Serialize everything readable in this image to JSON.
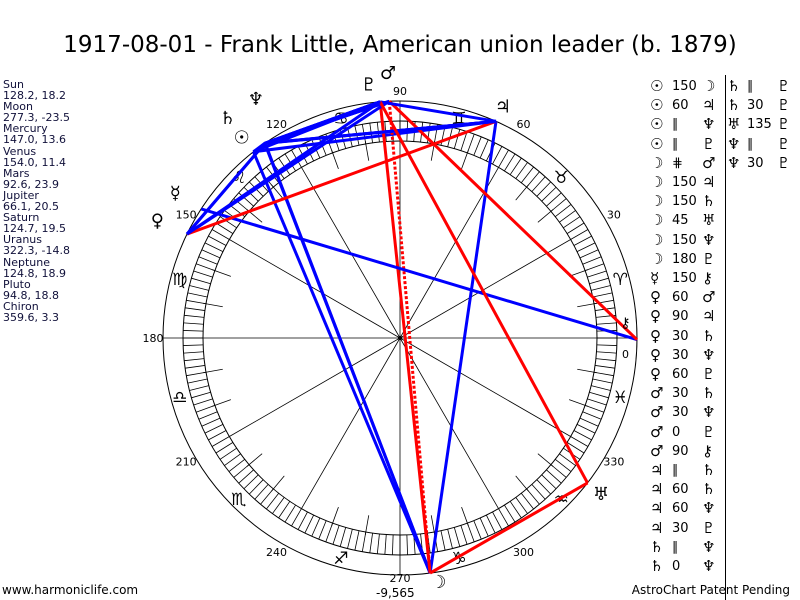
{
  "title": "1917-08-01 - Frank Little, American union leader (b. 1879)",
  "planets": [
    {
      "name": "Sun",
      "values": "128.2, 18.2",
      "lon": 128.2,
      "glyph": "☉"
    },
    {
      "name": "Moon",
      "values": "277.3, -23.5",
      "lon": 277.3,
      "glyph": "☽"
    },
    {
      "name": "Mercury",
      "values": "147.0, 13.6",
      "lon": 147.0,
      "glyph": "☿"
    },
    {
      "name": "Venus",
      "values": "154.0, 11.4",
      "lon": 154.0,
      "glyph": "♀"
    },
    {
      "name": "Mars",
      "values": "92.6, 23.9",
      "lon": 92.6,
      "glyph": "♂"
    },
    {
      "name": "Jupiter",
      "values": "66.1, 20.5",
      "lon": 66.1,
      "glyph": "♃"
    },
    {
      "name": "Saturn",
      "values": "124.7, 19.5",
      "lon": 124.7,
      "glyph": "♄"
    },
    {
      "name": "Uranus",
      "values": "322.3, -14.8",
      "lon": 322.3,
      "glyph": "♅"
    },
    {
      "name": "Neptune",
      "values": "124.8, 18.9",
      "lon": 124.8,
      "glyph": "♆"
    },
    {
      "name": "Pluto",
      "values": "94.8, 18.8",
      "lon": 94.8,
      "glyph": "♇"
    },
    {
      "name": "Chiron",
      "values": "359.6, 3.3",
      "lon": 359.6,
      "glyph": "⚷"
    }
  ],
  "aspects": [
    [
      "☉",
      "150",
      "☽"
    ],
    [
      "☉",
      "60",
      "♃"
    ],
    [
      "☉",
      "∥",
      "♆"
    ],
    [
      "☉",
      "∥",
      "♇"
    ],
    [
      "☽",
      "⋕",
      "♂"
    ],
    [
      "☽",
      "150",
      "♃"
    ],
    [
      "☽",
      "150",
      "♄"
    ],
    [
      "☽",
      "45",
      "♅"
    ],
    [
      "☽",
      "150",
      "♆"
    ],
    [
      "☽",
      "180",
      "♇"
    ],
    [
      "☿",
      "150",
      "⚷"
    ],
    [
      "♀",
      "60",
      "♂"
    ],
    [
      "♀",
      "90",
      "♃"
    ],
    [
      "♀",
      "30",
      "♄"
    ],
    [
      "♀",
      "30",
      "♆"
    ],
    [
      "♀",
      "60",
      "♇"
    ],
    [
      "♂",
      "30",
      "♄"
    ],
    [
      "♂",
      "30",
      "♆"
    ],
    [
      "♂",
      "0",
      "♇"
    ],
    [
      "♂",
      "90",
      "⚷"
    ],
    [
      "♃",
      "∥",
      "♄"
    ],
    [
      "♃",
      "60",
      "♄"
    ],
    [
      "♃",
      "60",
      "♆"
    ],
    [
      "♃",
      "30",
      "♇"
    ],
    [
      "♄",
      "∥",
      "♆"
    ],
    [
      "♄",
      "0",
      "♆"
    ],
    [
      "♄",
      "∥",
      "♇"
    ],
    [
      "♄",
      "30",
      "♇"
    ],
    [
      "♅",
      "135",
      "♇"
    ],
    [
      "♆",
      "∥",
      "♇"
    ],
    [
      "♆",
      "30",
      "♇"
    ]
  ],
  "aspect_colors": {
    "harmonious": "#0000ff",
    "hard": "#ff0000"
  },
  "signs": [
    "♈",
    "♉",
    "♊",
    "♋",
    "♌",
    "♍",
    "♎",
    "♏",
    "♐",
    "♑",
    "♒",
    "♓"
  ],
  "degree_labels": [
    "0",
    "30",
    "60",
    "90",
    "120",
    "150",
    "180",
    "210",
    "240",
    "270",
    "300",
    "330"
  ],
  "offset_label": "-9,565",
  "footer": {
    "left": "www.harmoniclife.com",
    "right": "AstroChart Patent Pending"
  }
}
